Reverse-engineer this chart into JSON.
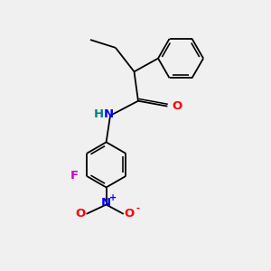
{
  "bg_color": "#f0f0f0",
  "bond_color": "#000000",
  "bond_width": 1.3,
  "atom_labels": {
    "H": {
      "color": "#008080",
      "fontsize": 9.5
    },
    "N_amide": {
      "color": "#0000ff",
      "fontsize": 9.5
    },
    "O_carbonyl": {
      "color": "#ff0000",
      "fontsize": 9.5
    },
    "F": {
      "color": "#cc00cc",
      "fontsize": 9.5
    },
    "N_nitro": {
      "color": "#0000ff",
      "fontsize": 9.5
    },
    "O_nitro": {
      "color": "#ff0000",
      "fontsize": 9.5
    },
    "plus": {
      "color": "#0000ff",
      "fontsize": 7
    },
    "minus": {
      "color": "#ff0000",
      "fontsize": 7
    }
  },
  "layout": {
    "xlim": [
      0,
      10
    ],
    "ylim": [
      0,
      10
    ]
  }
}
